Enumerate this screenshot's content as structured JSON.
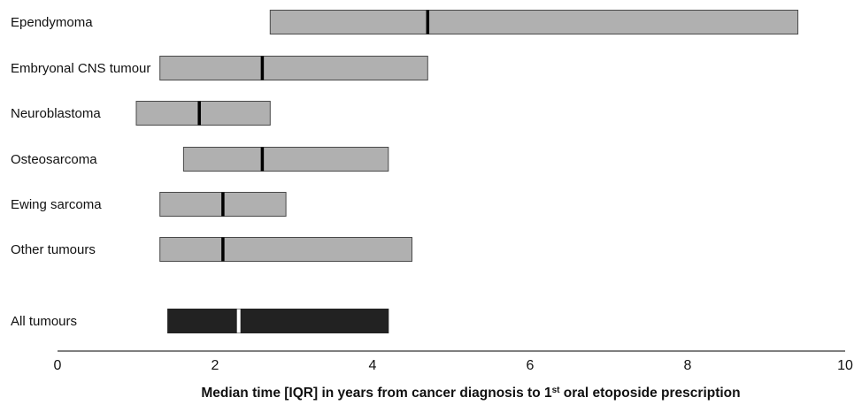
{
  "chart_data": {
    "type": "bar",
    "subtype": "horizontal-iqr-range",
    "title": "",
    "xlabel": "Median time [IQR] in years from cancer diagnosis to 1st oral etoposide prescription",
    "xlabel_parts": {
      "before": "Median time [IQR] in years from cancer diagnosis to 1",
      "superscript": "st",
      "after": " oral etoposide prescription"
    },
    "ylabel": "",
    "xlim": [
      0,
      10
    ],
    "xticks": [
      0,
      2,
      4,
      6,
      8,
      10
    ],
    "grid": false,
    "categories": [
      "Ependymoma",
      "Embryonal CNS tumour",
      "Neuroblastoma",
      "Osteosarcoma",
      "Ewing sarcoma",
      "Other tumours",
      "All tumours"
    ],
    "series": [
      {
        "q1": [
          2.7,
          1.3,
          1.0,
          1.6,
          1.3,
          1.3,
          1.4
        ],
        "median": [
          4.7,
          2.6,
          1.8,
          2.6,
          2.1,
          2.1,
          2.3
        ],
        "q3": [
          9.4,
          4.7,
          2.7,
          4.2,
          2.9,
          4.5,
          4.2
        ]
      }
    ],
    "colors": {
      "group_bar": "#b0b0b0",
      "all_bar": "#222222",
      "group_median": "#000000",
      "all_median": "#ffffff",
      "axis": "#555555"
    }
  }
}
